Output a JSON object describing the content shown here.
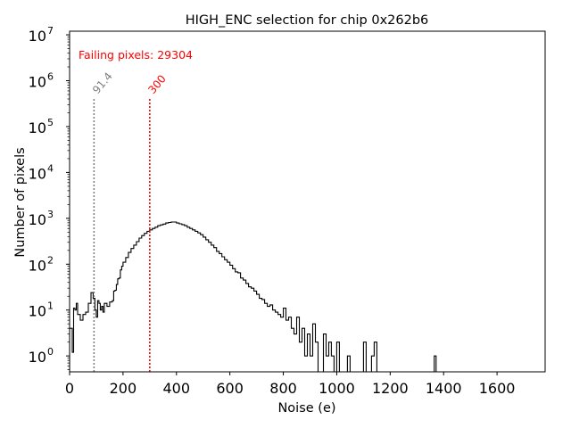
{
  "chart_data": {
    "type": "histogram",
    "title": "HIGH_ENC selection for chip 0x262b6",
    "xlabel": "Noise (e)",
    "ylabel": "Number of pixels",
    "yscale": "log",
    "xlim": [
      0,
      1780
    ],
    "ylim": [
      0.45,
      12000000
    ],
    "x_ticks": [
      0,
      200,
      400,
      600,
      800,
      1000,
      1200,
      1400,
      1600
    ],
    "x_tick_labels": [
      "0",
      "200",
      "400",
      "600",
      "800",
      "1000",
      "1200",
      "1400",
      "1600"
    ],
    "y_ticks": [
      1,
      10,
      100,
      1000,
      10000,
      100000,
      1000000,
      10000000
    ],
    "y_tick_labels": [
      {
        "base": "10",
        "exp": "0"
      },
      {
        "base": "10",
        "exp": "1"
      },
      {
        "base": "10",
        "exp": "2"
      },
      {
        "base": "10",
        "exp": "3"
      },
      {
        "base": "10",
        "exp": "4"
      },
      {
        "base": "10",
        "exp": "5"
      },
      {
        "base": "10",
        "exp": "6"
      },
      {
        "base": "10",
        "exp": "7"
      }
    ],
    "annotation": "Failing pixels: 29304",
    "thresholds": [
      {
        "name": "lower",
        "value": 91.4,
        "label": "91.4",
        "color": "#808080",
        "top": 400000
      },
      {
        "name": "upper",
        "value": 300,
        "label": "300",
        "color": "#ff0000",
        "top": 400000
      }
    ],
    "hist_color": "#000000",
    "hist_points": [
      [
        0,
        4
      ],
      [
        10,
        1.2
      ],
      [
        15,
        11
      ],
      [
        20,
        10
      ],
      [
        25,
        14
      ],
      [
        30,
        8
      ],
      [
        40,
        6
      ],
      [
        50,
        8
      ],
      [
        60,
        9
      ],
      [
        70,
        14
      ],
      [
        80,
        24
      ],
      [
        88,
        18
      ],
      [
        95,
        10
      ],
      [
        100,
        7
      ],
      [
        105,
        16
      ],
      [
        110,
        14
      ],
      [
        115,
        10
      ],
      [
        120,
        12
      ],
      [
        125,
        9
      ],
      [
        130,
        14
      ],
      [
        140,
        12
      ],
      [
        150,
        15
      ],
      [
        160,
        16
      ],
      [
        165,
        26
      ],
      [
        170,
        27
      ],
      [
        175,
        36
      ],
      [
        180,
        48
      ],
      [
        185,
        50
      ],
      [
        190,
        75
      ],
      [
        195,
        90
      ],
      [
        200,
        110
      ],
      [
        210,
        140
      ],
      [
        220,
        180
      ],
      [
        230,
        220
      ],
      [
        240,
        260
      ],
      [
        250,
        310
      ],
      [
        260,
        370
      ],
      [
        270,
        420
      ],
      [
        280,
        470
      ],
      [
        290,
        520
      ],
      [
        300,
        560
      ],
      [
        310,
        600
      ],
      [
        320,
        640
      ],
      [
        330,
        690
      ],
      [
        340,
        720
      ],
      [
        350,
        750
      ],
      [
        360,
        790
      ],
      [
        370,
        810
      ],
      [
        380,
        830
      ],
      [
        390,
        830
      ],
      [
        400,
        790
      ],
      [
        410,
        760
      ],
      [
        420,
        730
      ],
      [
        430,
        690
      ],
      [
        440,
        640
      ],
      [
        450,
        600
      ],
      [
        460,
        560
      ],
      [
        470,
        520
      ],
      [
        480,
        480
      ],
      [
        490,
        440
      ],
      [
        500,
        390
      ],
      [
        510,
        340
      ],
      [
        520,
        300
      ],
      [
        530,
        260
      ],
      [
        540,
        230
      ],
      [
        550,
        190
      ],
      [
        560,
        170
      ],
      [
        570,
        145
      ],
      [
        580,
        125
      ],
      [
        590,
        110
      ],
      [
        600,
        95
      ],
      [
        610,
        80
      ],
      [
        620,
        68
      ],
      [
        630,
        65
      ],
      [
        640,
        50
      ],
      [
        650,
        45
      ],
      [
        660,
        38
      ],
      [
        670,
        32
      ],
      [
        680,
        30
      ],
      [
        690,
        26
      ],
      [
        700,
        22
      ],
      [
        710,
        18
      ],
      [
        720,
        17
      ],
      [
        730,
        14
      ],
      [
        740,
        12
      ],
      [
        750,
        13
      ],
      [
        760,
        10
      ],
      [
        770,
        9
      ],
      [
        780,
        8
      ],
      [
        790,
        7
      ],
      [
        800,
        11
      ],
      [
        810,
        6
      ],
      [
        820,
        7
      ],
      [
        830,
        4
      ],
      [
        840,
        3
      ],
      [
        850,
        7
      ],
      [
        860,
        2
      ],
      [
        870,
        4
      ],
      [
        880,
        1
      ],
      [
        890,
        3
      ],
      [
        900,
        1
      ],
      [
        910,
        5
      ],
      [
        920,
        2
      ],
      [
        930,
        0
      ],
      [
        950,
        3
      ],
      [
        960,
        1
      ],
      [
        970,
        2
      ],
      [
        980,
        1
      ],
      [
        990,
        0
      ],
      [
        1000,
        2
      ],
      [
        1010,
        0
      ],
      [
        1040,
        1
      ],
      [
        1050,
        0
      ],
      [
        1100,
        2
      ],
      [
        1110,
        0
      ],
      [
        1130,
        1
      ],
      [
        1140,
        2
      ],
      [
        1150,
        0
      ],
      [
        1365,
        1
      ],
      [
        1372,
        0
      ],
      [
        1780,
        0
      ]
    ]
  }
}
